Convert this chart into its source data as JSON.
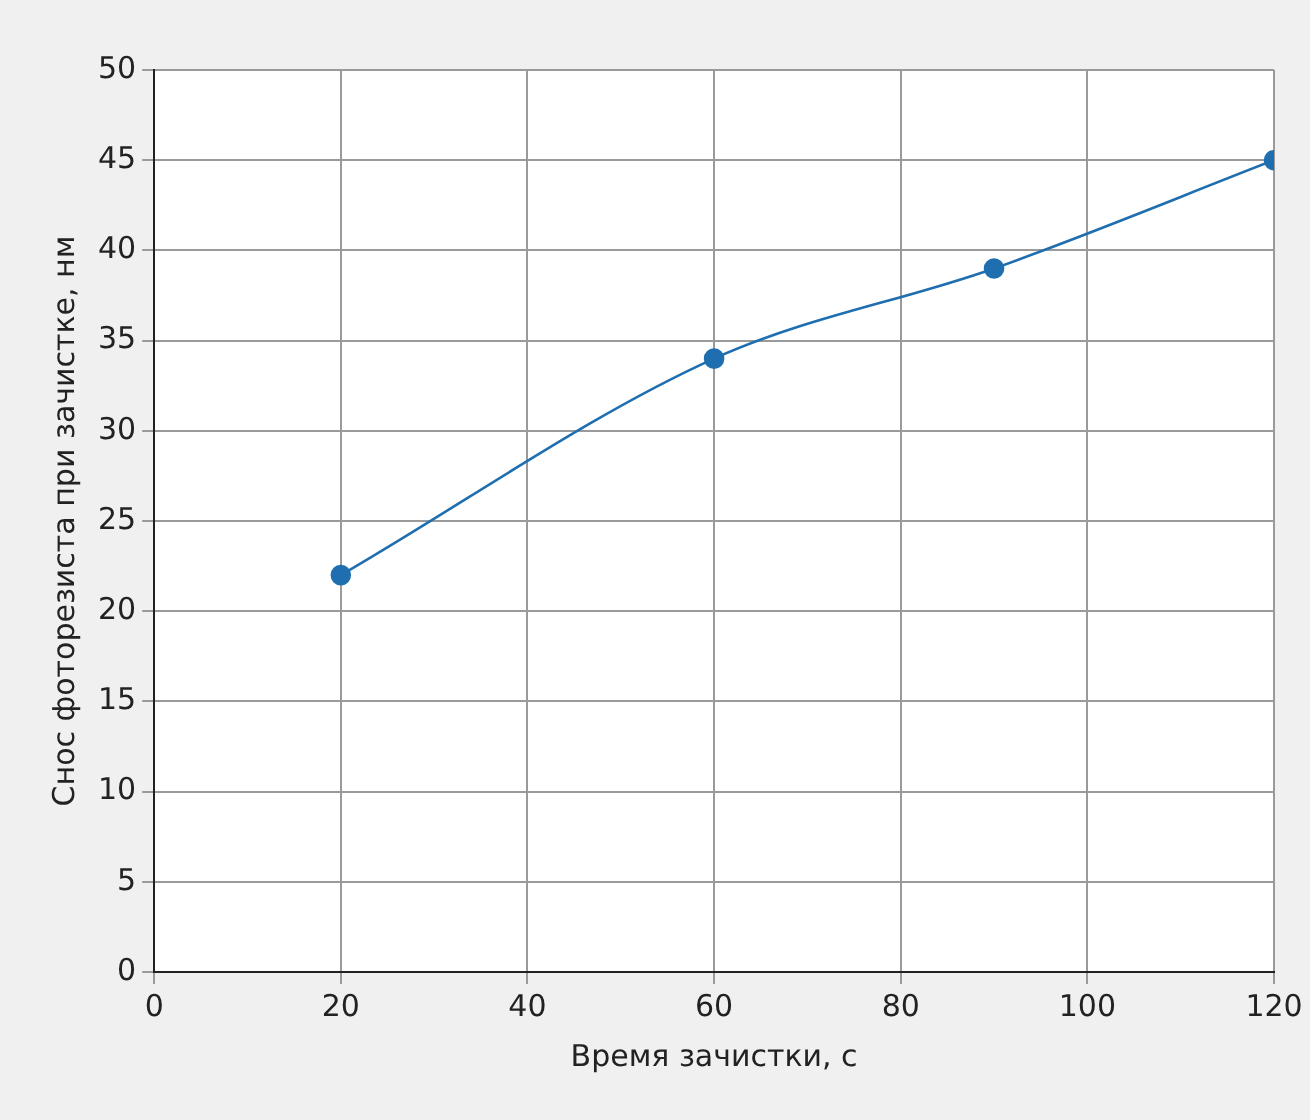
{
  "chart_data": {
    "type": "line",
    "xlabel": "Время зачистки, с",
    "ylabel": "Снос фоторезиста при зачистке, нм",
    "x": [
      20,
      60,
      90,
      120
    ],
    "series": [
      {
        "color": "#1f6fb0",
        "values": [
          22,
          34,
          39,
          45
        ]
      }
    ],
    "xlim": [
      0,
      120
    ],
    "xticks": [
      0,
      20,
      40,
      60,
      80,
      100,
      120
    ],
    "ylim": [
      0,
      50
    ],
    "yticks": [
      0,
      5,
      10,
      15,
      20,
      25,
      30,
      35,
      40,
      45,
      50
    ],
    "grid": true,
    "legend": false,
    "marker": "circle",
    "line_style": "solid"
  }
}
